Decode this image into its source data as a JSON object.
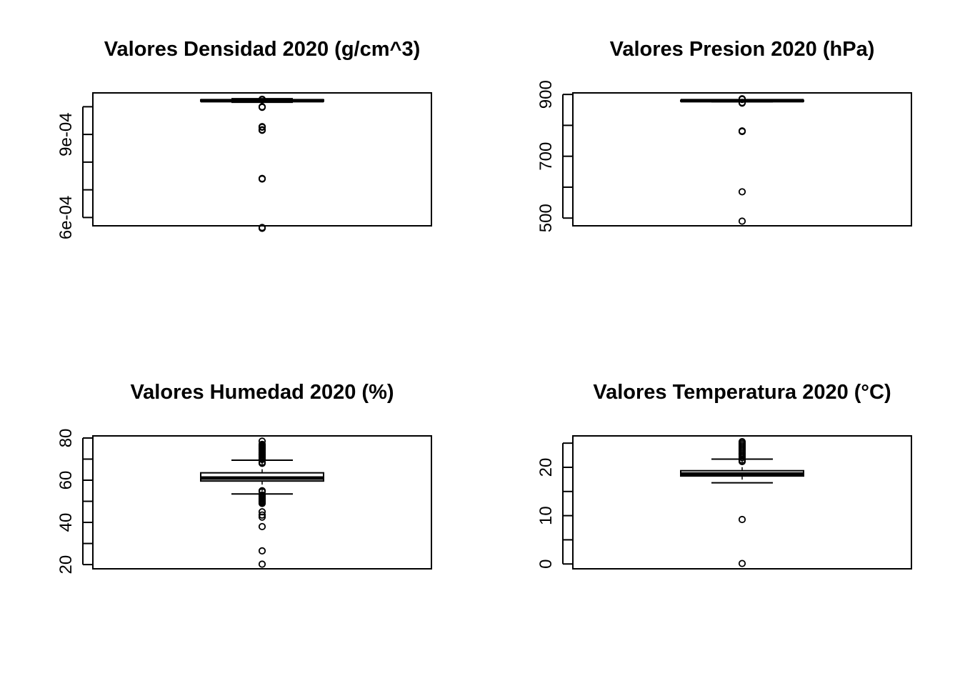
{
  "chart_data": [
    {
      "type": "boxplot",
      "title": "Valores Densidad 2020 (g/cm^3)",
      "ylim": [
        0.00057,
        0.00105
      ],
      "yticks": [
        0.0006,
        0.0007,
        0.0008,
        0.0009,
        0.001
      ],
      "ytick_labels": [
        "6e-04",
        "",
        "",
        "9e-04",
        ""
      ],
      "box": {
        "whisker_low": 0.001016,
        "q1": 0.00102,
        "median": 0.001022,
        "q3": 0.001025,
        "whisker_high": 0.001029
      },
      "outliers": [
        0.001025,
        0.001027,
        0.001,
        0.000998,
        0.000928,
        0.000926,
        0.000917,
        0.000915,
        0.000741,
        0.000739,
        0.000561,
        0.000564
      ]
    },
    {
      "type": "boxplot",
      "title": "Valores Presion 2020 (hPa)",
      "ylim": [
        475,
        905
      ],
      "yticks": [
        500,
        600,
        700,
        800,
        900
      ],
      "ytick_labels": [
        "500",
        "",
        "700",
        "",
        "900"
      ],
      "box": {
        "whisker_low": 876,
        "q1": 878,
        "median": 880,
        "q3": 881,
        "whisker_high": 882
      },
      "outliers": [
        886,
        884,
        874,
        872,
        782,
        780,
        585,
        490
      ]
    },
    {
      "type": "boxplot",
      "title": "Valores Humedad 2020 (%)",
      "ylim": [
        18,
        81
      ],
      "yticks": [
        20,
        30,
        40,
        50,
        60,
        70,
        80
      ],
      "ytick_labels": [
        "20",
        "",
        "40",
        "",
        "60",
        "",
        "80"
      ],
      "box": {
        "whisker_low": 53.5,
        "q1": 59.6,
        "median": 61,
        "q3": 63.5,
        "whisker_high": 69.5
      },
      "outliers": [
        78.5,
        77,
        76.5,
        76,
        75.5,
        75,
        74.5,
        74,
        73.5,
        73,
        72.5,
        72,
        71.5,
        71,
        70.5,
        70,
        69.8,
        68.5,
        68,
        55,
        54.5,
        53,
        52.5,
        52,
        51.5,
        51,
        50.5,
        50,
        49.5,
        49,
        45,
        43.5,
        42.5,
        38,
        26.5,
        20.2
      ]
    },
    {
      "type": "boxplot",
      "title": "Valores Temperatura 2020 (°C)",
      "ylim": [
        -1,
        26.5
      ],
      "yticks": [
        0,
        5,
        10,
        15,
        20,
        25
      ],
      "ytick_labels": [
        "0",
        "",
        "10",
        "",
        "20",
        ""
      ],
      "box": {
        "whisker_low": 16.8,
        "q1": 18.2,
        "median": 18.6,
        "q3": 19.3,
        "whisker_high": 21.7
      },
      "outliers": [
        25.3,
        25,
        24.7,
        24.4,
        24.1,
        23.8,
        23.5,
        23.2,
        22.9,
        22.6,
        22.3,
        22.0,
        21.5,
        21.2,
        9.2,
        0.1
      ]
    }
  ]
}
